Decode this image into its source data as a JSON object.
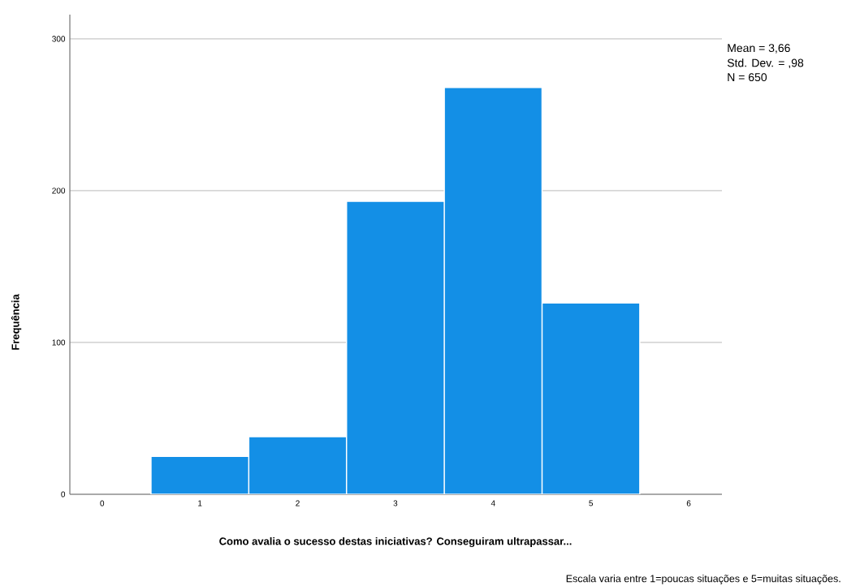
{
  "chart_data": {
    "type": "histogram",
    "xlabel": "Como avalia o sucesso destas iniciativas? Conseguiram ultrapassar...",
    "ylabel": "Frequência",
    "bins": [
      0.5,
      1.5,
      2.5,
      3.5,
      4.5,
      5.5
    ],
    "values": [
      25,
      38,
      193,
      268,
      126
    ],
    "color": "#138fe6",
    "xlim": [
      -0.33,
      6.34
    ],
    "xticks": [
      0,
      1,
      2,
      3,
      4,
      5,
      6
    ],
    "ylim": [
      0,
      316
    ],
    "yticks": [
      0,
      100,
      200,
      300
    ],
    "grid": "y",
    "annotations": [
      "Mean = 3,66",
      "Std. Dev. = ,98",
      "N = 650",
      "Escala varia entre 1=poucas situações e 5=muitas situações."
    ]
  }
}
